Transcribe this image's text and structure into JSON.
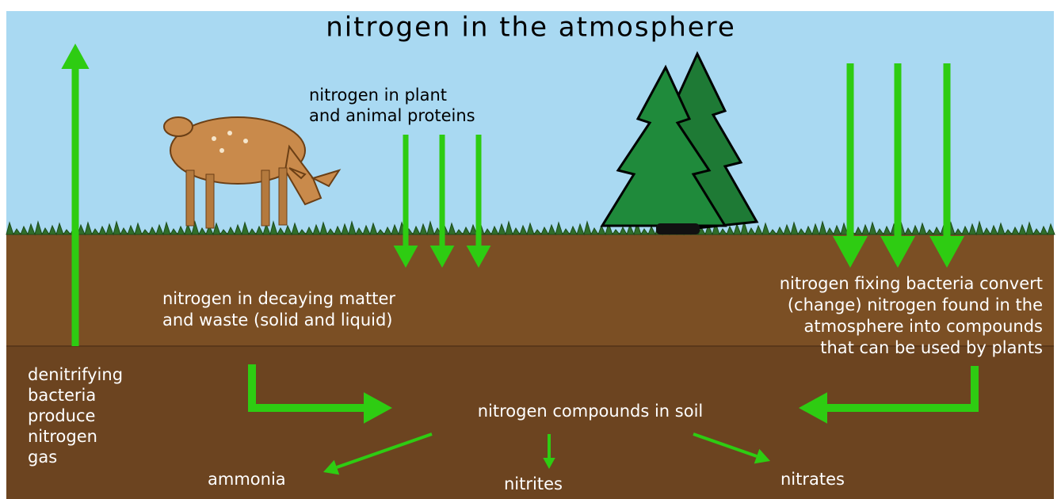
{
  "title": "nitrogen in the atmosphere",
  "labels": {
    "plant_animal_proteins": [
      "nitrogen in plant",
      "and animal proteins"
    ],
    "decaying_matter": [
      "nitrogen in decaying matter",
      "and waste (solid and liquid)"
    ],
    "fixing_bacteria": [
      "nitrogen fixing bacteria convert",
      "(change) nitrogen found in the",
      "atmosphere into compounds",
      "that can be used by plants"
    ],
    "denitrifying": [
      "denitrifying",
      "bacteria",
      "produce",
      "nitrogen",
      "gas"
    ],
    "compounds_in_soil": "nitrogen compounds in soil",
    "ammonia": "ammonia",
    "nitrites": "nitrites",
    "nitrates": "nitrates"
  }
}
